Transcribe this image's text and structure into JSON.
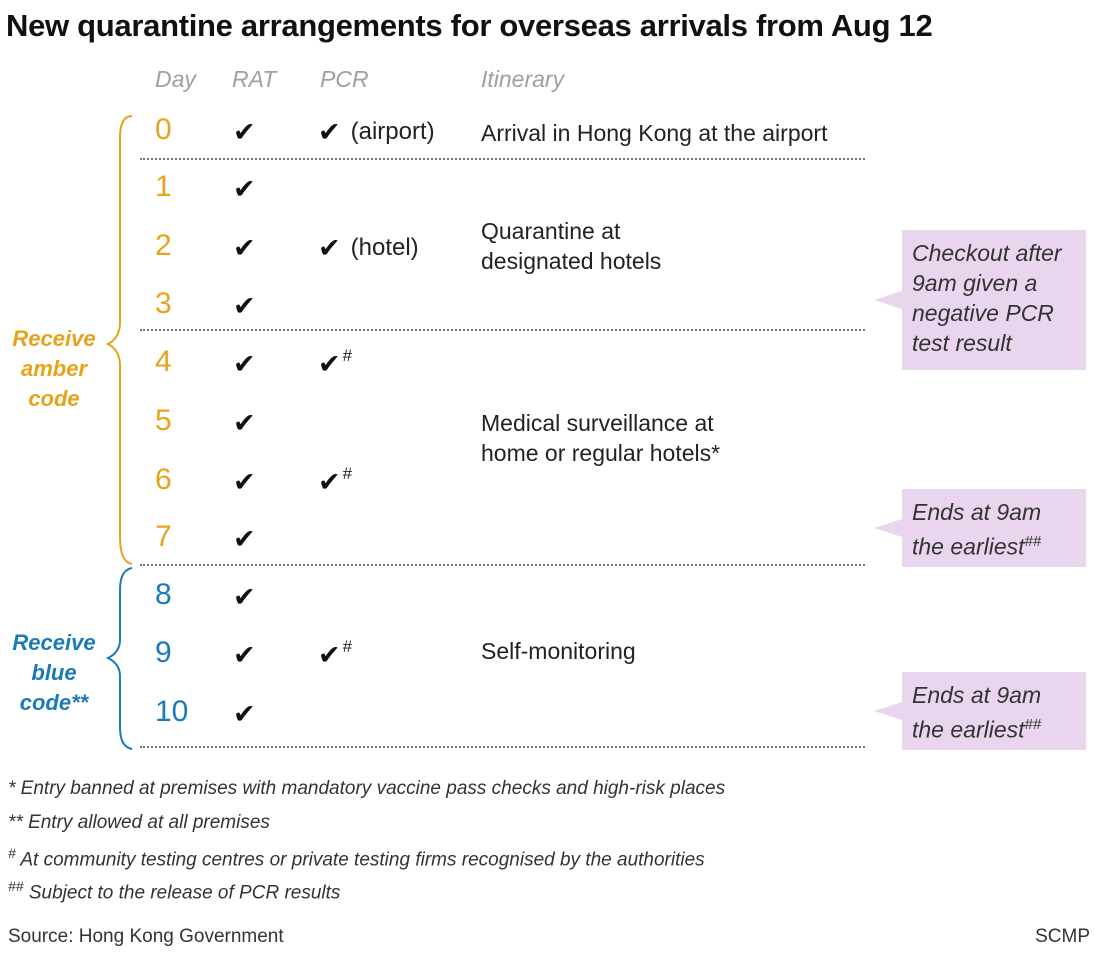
{
  "title": "New quarantine arrangements for overseas arrivals from Aug 12",
  "headers": {
    "day": "Day",
    "rat": "RAT",
    "pcr": "PCR",
    "itinerary": "Itinerary"
  },
  "colors": {
    "amber": "#e8a31a",
    "blue": "#1a7bb8",
    "callout_bg": "#e9d5ee"
  },
  "days": [
    {
      "day": "0",
      "rat": "✔",
      "pcr": "✔",
      "pcr_note": "(airport)",
      "pcr_mark": ""
    },
    {
      "day": "1",
      "rat": "✔",
      "pcr": "",
      "pcr_note": "",
      "pcr_mark": ""
    },
    {
      "day": "2",
      "rat": "✔",
      "pcr": "✔",
      "pcr_note": "(hotel)",
      "pcr_mark": ""
    },
    {
      "day": "3",
      "rat": "✔",
      "pcr": "",
      "pcr_note": "",
      "pcr_mark": ""
    },
    {
      "day": "4",
      "rat": "✔",
      "pcr": "✔",
      "pcr_note": "",
      "pcr_mark": "#"
    },
    {
      "day": "5",
      "rat": "✔",
      "pcr": "",
      "pcr_note": "",
      "pcr_mark": ""
    },
    {
      "day": "6",
      "rat": "✔",
      "pcr": "✔",
      "pcr_note": "",
      "pcr_mark": "#"
    },
    {
      "day": "7",
      "rat": "✔",
      "pcr": "",
      "pcr_note": "",
      "pcr_mark": ""
    },
    {
      "day": "8",
      "rat": "✔",
      "pcr": "",
      "pcr_note": "",
      "pcr_mark": ""
    },
    {
      "day": "9",
      "rat": "✔",
      "pcr": "✔",
      "pcr_note": "",
      "pcr_mark": "#"
    },
    {
      "day": "10",
      "rat": "✔",
      "pcr": "",
      "pcr_note": "",
      "pcr_mark": ""
    }
  ],
  "itinerary": {
    "arrival": "Arrival in Hong Kong at the airport",
    "quarantine_line1": "Quarantine at",
    "quarantine_line2": "designated hotels",
    "medical_line1": "Medical surveillance at",
    "medical_line2": "home or regular hotels*",
    "self_monitoring": "Self-monitoring"
  },
  "codes": {
    "amber": {
      "line1": "Receive",
      "line2": "amber",
      "line3": "code"
    },
    "blue": {
      "line1": "Receive",
      "line2": "blue",
      "line3": "code**"
    }
  },
  "callouts": {
    "checkout": {
      "line1": "Checkout after",
      "line2": "9am given a",
      "line3": "negative PCR",
      "line4": "test result"
    },
    "ends_amber": {
      "line1": "Ends at 9am",
      "line2": "the earliest",
      "mark": "##"
    },
    "ends_blue": {
      "line1": "Ends at 9am",
      "line2": "the earliest",
      "mark": "##"
    }
  },
  "footnotes": {
    "star": "* Entry banned at premises with mandatory vaccine pass checks and high-risk places",
    "double_star": "** Entry allowed at all premises",
    "hash_mark": "#",
    "hash_text": " At community testing centres or private testing firms recognised by the authorities",
    "double_hash_mark": "##",
    "double_hash_text": " Subject to the release of PCR results"
  },
  "source": "Source: Hong Kong Government",
  "credit": "SCMP"
}
